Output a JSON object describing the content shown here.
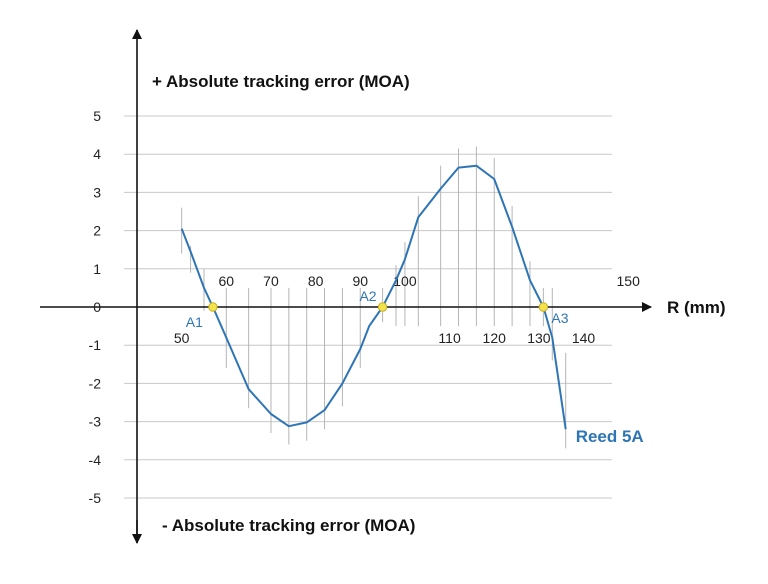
{
  "chart_data": {
    "type": "line",
    "y_label_top": "+ Absolute tracking error (MOA)",
    "y_label_bottom": "- Absolute tracking error (MOA)",
    "x_axis_label": "R (mm)",
    "ylim": [
      -5,
      5
    ],
    "xlim": [
      40,
      156
    ],
    "y_ticks": [
      5,
      4,
      3,
      2,
      1,
      0,
      -1,
      -2,
      -3,
      -4,
      -5
    ],
    "x_tick_labels": [
      {
        "x": 50,
        "label": "50",
        "pos": "below"
      },
      {
        "x": 60,
        "label": "60",
        "pos": "above"
      },
      {
        "x": 70,
        "label": "70",
        "pos": "above"
      },
      {
        "x": 80,
        "label": "80",
        "pos": "above"
      },
      {
        "x": 90,
        "label": "90",
        "pos": "above"
      },
      {
        "x": 100,
        "label": "100",
        "pos": "above"
      },
      {
        "x": 110,
        "label": "110",
        "pos": "below"
      },
      {
        "x": 120,
        "label": "120",
        "pos": "below"
      },
      {
        "x": 130,
        "label": "130",
        "pos": "below"
      },
      {
        "x": 140,
        "label": "140",
        "pos": "below"
      },
      {
        "x": 150,
        "label": "150",
        "pos": "above"
      }
    ],
    "grid": "horizontal",
    "series": [
      {
        "name": "Reed 5A",
        "color": "#2e75b6",
        "points": [
          [
            50,
            2.05
          ],
          [
            52,
            1.45
          ],
          [
            55,
            0.5
          ],
          [
            57,
            0.0
          ],
          [
            60,
            -0.8
          ],
          [
            65,
            -2.15
          ],
          [
            70,
            -2.8
          ],
          [
            74,
            -3.12
          ],
          [
            78,
            -3.02
          ],
          [
            82,
            -2.7
          ],
          [
            86,
            -2.0
          ],
          [
            90,
            -1.1
          ],
          [
            92,
            -0.5
          ],
          [
            95,
            0.0
          ],
          [
            98,
            0.7
          ],
          [
            100,
            1.25
          ],
          [
            103,
            2.35
          ],
          [
            108,
            3.1
          ],
          [
            112,
            3.65
          ],
          [
            116,
            3.7
          ],
          [
            120,
            3.35
          ],
          [
            124,
            2.1
          ],
          [
            128,
            0.7
          ],
          [
            131,
            0.0
          ],
          [
            133,
            -0.8
          ],
          [
            136,
            -3.2
          ]
        ],
        "error_bars": [
          [
            50,
            1.4,
            2.6
          ],
          [
            52,
            0.9,
            1.6
          ],
          [
            55,
            -0.1,
            1.0
          ],
          [
            60,
            -1.6,
            0.5
          ],
          [
            65,
            -2.65,
            0.5
          ],
          [
            70,
            -3.3,
            0.5
          ],
          [
            74,
            -3.6,
            0.5
          ],
          [
            78,
            -3.5,
            0.5
          ],
          [
            82,
            -3.2,
            0.5
          ],
          [
            86,
            -2.6,
            0.5
          ],
          [
            90,
            -1.6,
            0.5
          ],
          [
            95,
            -0.4,
            0.5
          ],
          [
            98,
            -0.5,
            1.1
          ],
          [
            100,
            -0.5,
            1.7
          ],
          [
            103,
            -0.5,
            2.9
          ],
          [
            108,
            -0.5,
            3.7
          ],
          [
            112,
            -0.5,
            4.15
          ],
          [
            116,
            -0.5,
            4.2
          ],
          [
            120,
            -0.5,
            3.9
          ],
          [
            124,
            -0.5,
            2.65
          ],
          [
            128,
            -0.5,
            1.2
          ],
          [
            131,
            -0.5,
            0.5
          ],
          [
            133,
            -1.4,
            0.5
          ],
          [
            136,
            -3.7,
            -1.2
          ]
        ]
      }
    ],
    "marked_points": [
      {
        "label": "A1",
        "x": 57,
        "y": 0
      },
      {
        "label": "A2",
        "x": 95,
        "y": 0
      },
      {
        "label": "A3",
        "x": 131,
        "y": 0
      }
    ],
    "colors": {
      "line": "#2e75b6",
      "marker_fill": "#f3e24a",
      "marker_stroke": "#c8b020",
      "grid": "#c8c8c8",
      "error_bar": "#b5b5b5",
      "axis": "#111111"
    }
  }
}
